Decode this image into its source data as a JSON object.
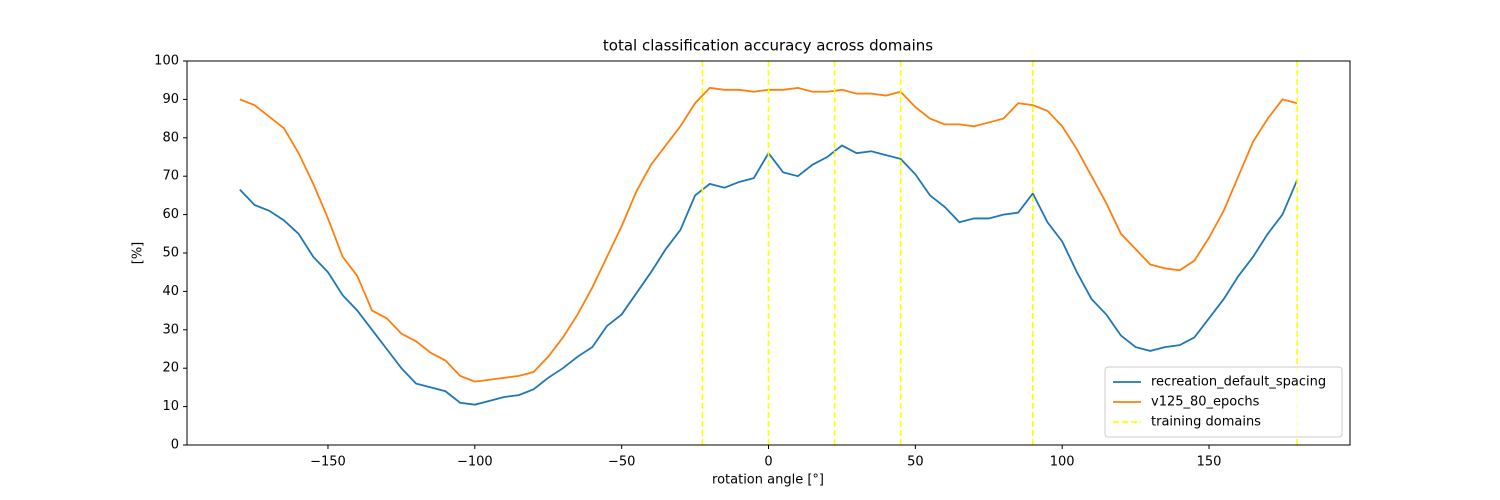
{
  "chart_data": {
    "type": "line",
    "title": "total classification accuracy across domains",
    "x_label": "rotation angle [°]",
    "y_label": "[%]",
    "x": [
      -180,
      -175,
      -170,
      -165,
      -160,
      -155,
      -150,
      -145,
      -140,
      -135,
      -130,
      -125,
      -120,
      -115,
      -110,
      -105,
      -100,
      -95,
      -90,
      -85,
      -80,
      -75,
      -70,
      -65,
      -60,
      -55,
      -50,
      -45,
      -40,
      -35,
      -30,
      -25,
      -20,
      -15,
      -10,
      -5,
      0,
      5,
      10,
      15,
      20,
      25,
      30,
      35,
      40,
      45,
      50,
      55,
      60,
      65,
      70,
      75,
      80,
      85,
      90,
      95,
      100,
      105,
      110,
      115,
      120,
      125,
      130,
      135,
      140,
      145,
      150,
      155,
      160,
      165,
      170,
      175,
      180
    ],
    "series": [
      {
        "name": "recreation_default_spacing",
        "color": "#1f77b4",
        "values": [
          66.5,
          62.5,
          61,
          58.5,
          55,
          49,
          45,
          39,
          35,
          30,
          25,
          20,
          16,
          15,
          14,
          11,
          10.5,
          11.5,
          12.5,
          13,
          14.5,
          17.5,
          20,
          23,
          25.5,
          31,
          34,
          39.5,
          45,
          51,
          56,
          65,
          68,
          67,
          68.5,
          69.5,
          76,
          71,
          70,
          73,
          75,
          78,
          76,
          76.5,
          75.5,
          74.5,
          70.5,
          65,
          62,
          58,
          59,
          59,
          60,
          60.5,
          65.5,
          58,
          53,
          45,
          38,
          34,
          28.5,
          25.5,
          24.5,
          25.5,
          26,
          28,
          33,
          38,
          44,
          49,
          55,
          60,
          69
        ]
      },
      {
        "name": "v125_80_epochs",
        "color": "#ff7f0e",
        "values": [
          90,
          88.5,
          85.5,
          82.5,
          76,
          68,
          59,
          49,
          44,
          35,
          33,
          29,
          27,
          24,
          22,
          18,
          16.5,
          17,
          17.5,
          18,
          19,
          23,
          28,
          34,
          41,
          49,
          57,
          66,
          73,
          78,
          83,
          89,
          93,
          92.5,
          92.5,
          92,
          92.5,
          92.5,
          93,
          92,
          92,
          92.5,
          91.5,
          91.5,
          91,
          92,
          88,
          85,
          83.5,
          83.5,
          83,
          84,
          85,
          89,
          88.5,
          87,
          83,
          77,
          70,
          63,
          55,
          51,
          47,
          46,
          45.5,
          48,
          54,
          61,
          70,
          79,
          85,
          90,
          89
        ]
      }
    ],
    "training_domains": {
      "name": "training domains",
      "color": "#ffff00",
      "x": [
        -22.5,
        0,
        22.5,
        45,
        90,
        180
      ]
    },
    "xlim": [
      -198,
      198
    ],
    "xticks": [
      {
        "value": -150,
        "label": "−150"
      },
      {
        "value": -100,
        "label": "−100"
      },
      {
        "value": -50,
        "label": "−50"
      },
      0,
      50,
      100,
      150
    ],
    "ylim": [
      0,
      100
    ],
    "yticks": [
      0,
      10,
      20,
      30,
      40,
      50,
      60,
      70,
      80,
      90,
      100
    ],
    "legend": "lower right"
  }
}
